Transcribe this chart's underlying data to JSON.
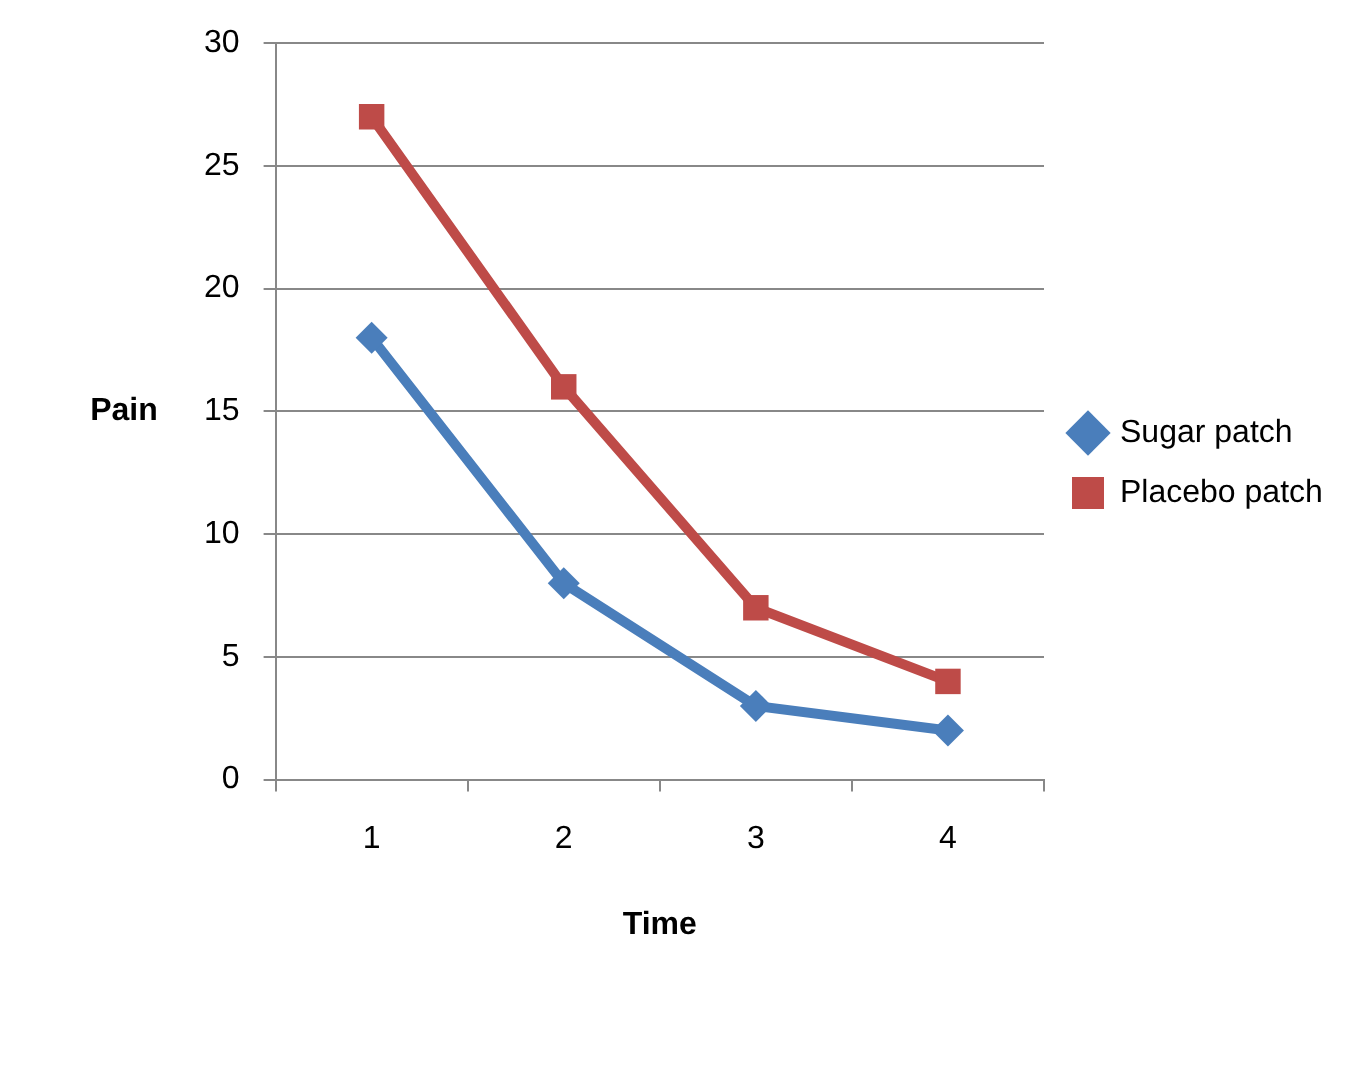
{
  "chart_data": {
    "type": "line",
    "xlabel": "Time",
    "ylabel": "Pain",
    "categories": [
      "1",
      "2",
      "3",
      "4"
    ],
    "series": [
      {
        "name": "Sugar patch",
        "color": "#4a7ebb",
        "values": [
          18,
          8,
          3,
          2
        ],
        "marker": "diamond"
      },
      {
        "name": "Placebo patch",
        "color": "#be4b48",
        "values": [
          27,
          16,
          7,
          4
        ],
        "marker": "square"
      }
    ],
    "ylim": [
      0,
      30
    ],
    "yticks": [
      0,
      5,
      10,
      15,
      20,
      25,
      30
    ],
    "grid": "y",
    "legend": "right",
    "line_style": "solid"
  }
}
